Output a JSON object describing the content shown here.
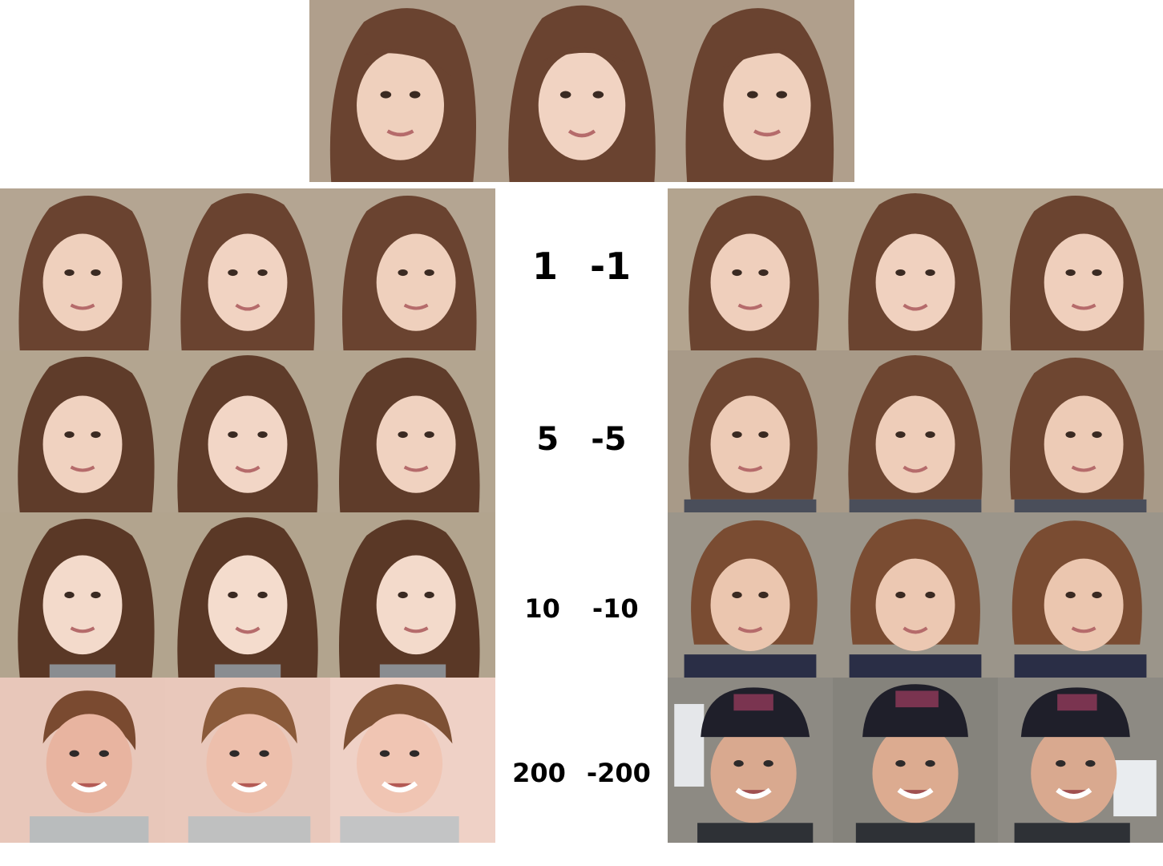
{
  "colors": {
    "background": "#ffffff",
    "label_text": "#000000",
    "brown_hair": "#6a4330",
    "skin_light": "#f1d3c2",
    "backdrop_beige": "#b4a592",
    "boy_backdrop": "#e9c8bb",
    "cap_black": "#1f1f2a"
  },
  "labels": [
    {
      "positive": "1",
      "negative": "-1"
    },
    {
      "positive": "5",
      "negative": "-5"
    },
    {
      "positive": "10",
      "negative": "-10"
    },
    {
      "positive": "200",
      "negative": "-200"
    }
  ],
  "images": {
    "top_row": [
      "face-icon",
      "face-icon",
      "face-icon"
    ],
    "left_grid_rows": 4,
    "right_grid_rows": 4,
    "columns_per_grid": 3
  }
}
